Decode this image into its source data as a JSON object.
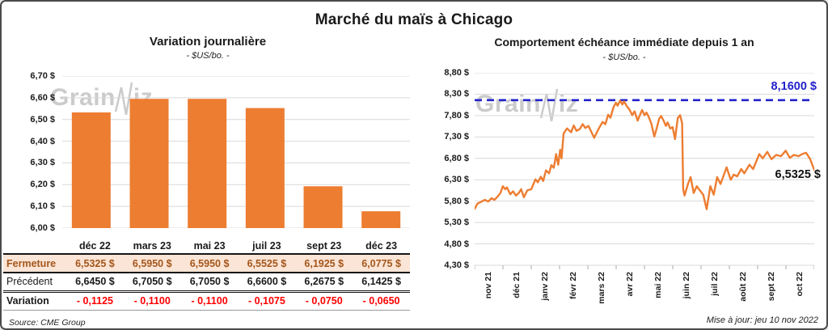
{
  "page": {
    "title": "Marché du maïs à Chicago",
    "source": "Source: CME Group",
    "updated": "Mise à jour: jeu 10 nov 2022",
    "watermark": {
      "prefix": "Grain",
      "suffix": "iz"
    }
  },
  "chart_data": [
    {
      "type": "bar",
      "title": "Variation journalière",
      "subtitle": "- $US/bo. -",
      "categories": [
        "déc 22",
        "mars 23",
        "mai 23",
        "juil 23",
        "sept 23",
        "déc 23"
      ],
      "values": [
        6.5325,
        6.595,
        6.595,
        6.5525,
        6.1925,
        6.0775
      ],
      "ylim": [
        6.0,
        6.7
      ],
      "ytick_step": 0.1,
      "ytick_labels": [
        "6,70 $",
        "6,60 $",
        "6,50 $",
        "6,40 $",
        "6,30 $",
        "6,20 $",
        "6,10 $",
        "6,00 $"
      ],
      "bar_color": "#ED7D31",
      "grid_color": "#D9D9D9"
    },
    {
      "type": "line",
      "title": "Comportement échéance immédiate depuis 1 an",
      "subtitle": "- $US/bo. -",
      "x_labels": [
        "nov 21",
        "déc 21",
        "janv 22",
        "févr 22",
        "mars 22",
        "avr 22",
        "mai 22",
        "juin 22",
        "juil 22",
        "août 22",
        "sept 22",
        "oct 22"
      ],
      "ylim": [
        4.3,
        8.8
      ],
      "ytick_step": 0.5,
      "ytick_labels": [
        "8,80 $",
        "8,30 $",
        "7,80 $",
        "7,30 $",
        "6,80 $",
        "6,30 $",
        "5,80 $",
        "5,30 $",
        "4,80 $",
        "4,30 $"
      ],
      "line_color": "#ED7D31",
      "grid_color": "#D9D9D9",
      "reference_line": {
        "value": 8.16,
        "label": "8,1600 $",
        "color": "#2222CC"
      },
      "last_point_label": "6,5325 $",
      "points": [
        [
          0.0,
          5.62
        ],
        [
          0.008,
          5.74
        ],
        [
          0.018,
          5.78
        ],
        [
          0.03,
          5.83
        ],
        [
          0.04,
          5.79
        ],
        [
          0.05,
          5.87
        ],
        [
          0.058,
          5.83
        ],
        [
          0.068,
          5.91
        ],
        [
          0.076,
          5.99
        ],
        [
          0.083,
          6.15
        ],
        [
          0.09,
          6.08
        ],
        [
          0.095,
          6.12
        ],
        [
          0.105,
          5.96
        ],
        [
          0.113,
          6.03
        ],
        [
          0.122,
          5.93
        ],
        [
          0.13,
          5.99
        ],
        [
          0.137,
          6.08
        ],
        [
          0.145,
          5.89
        ],
        [
          0.155,
          6.05
        ],
        [
          0.167,
          6.08
        ],
        [
          0.179,
          6.31
        ],
        [
          0.186,
          6.24
        ],
        [
          0.195,
          6.37
        ],
        [
          0.202,
          6.27
        ],
        [
          0.21,
          6.52
        ],
        [
          0.219,
          6.45
        ],
        [
          0.226,
          6.64
        ],
        [
          0.233,
          6.58
        ],
        [
          0.24,
          6.9
        ],
        [
          0.246,
          6.65
        ],
        [
          0.252,
          7.0
        ],
        [
          0.256,
          6.8
        ],
        [
          0.262,
          7.38
        ],
        [
          0.272,
          7.5
        ],
        [
          0.284,
          7.41
        ],
        [
          0.292,
          7.57
        ],
        [
          0.3,
          7.44
        ],
        [
          0.31,
          7.49
        ],
        [
          0.318,
          7.6
        ],
        [
          0.326,
          7.51
        ],
        [
          0.335,
          7.56
        ],
        [
          0.344,
          7.41
        ],
        [
          0.352,
          7.28
        ],
        [
          0.362,
          7.44
        ],
        [
          0.37,
          7.56
        ],
        [
          0.377,
          7.65
        ],
        [
          0.385,
          7.6
        ],
        [
          0.393,
          7.82
        ],
        [
          0.4,
          7.75
        ],
        [
          0.409,
          8.0
        ],
        [
          0.416,
          8.1
        ],
        [
          0.421,
          8.03
        ],
        [
          0.428,
          8.15
        ],
        [
          0.435,
          8.06
        ],
        [
          0.44,
          8.13
        ],
        [
          0.448,
          8.02
        ],
        [
          0.456,
          7.94
        ],
        [
          0.464,
          7.81
        ],
        [
          0.471,
          7.9
        ],
        [
          0.48,
          7.68
        ],
        [
          0.488,
          7.84
        ],
        [
          0.493,
          7.93
        ],
        [
          0.5,
          7.81
        ],
        [
          0.506,
          7.87
        ],
        [
          0.512,
          7.78
        ],
        [
          0.52,
          7.62
        ],
        [
          0.529,
          7.31
        ],
        [
          0.536,
          7.5
        ],
        [
          0.543,
          7.72
        ],
        [
          0.549,
          7.79
        ],
        [
          0.556,
          7.69
        ],
        [
          0.563,
          7.56
        ],
        [
          0.568,
          7.64
        ],
        [
          0.576,
          7.5
        ],
        [
          0.583,
          7.53
        ],
        [
          0.59,
          7.25
        ],
        [
          0.598,
          7.74
        ],
        [
          0.605,
          7.81
        ],
        [
          0.611,
          7.62
        ],
        [
          0.614,
          6.08
        ],
        [
          0.618,
          5.93
        ],
        [
          0.628,
          6.2
        ],
        [
          0.636,
          6.36
        ],
        [
          0.645,
          5.99
        ],
        [
          0.654,
          6.15
        ],
        [
          0.663,
          6.05
        ],
        [
          0.673,
          5.95
        ],
        [
          0.683,
          5.61
        ],
        [
          0.694,
          6.15
        ],
        [
          0.704,
          5.95
        ],
        [
          0.714,
          6.36
        ],
        [
          0.724,
          6.2
        ],
        [
          0.742,
          6.59
        ],
        [
          0.754,
          6.3
        ],
        [
          0.763,
          6.42
        ],
        [
          0.773,
          6.38
        ],
        [
          0.785,
          6.55
        ],
        [
          0.794,
          6.45
        ],
        [
          0.809,
          6.65
        ],
        [
          0.82,
          6.55
        ],
        [
          0.838,
          6.9
        ],
        [
          0.848,
          6.8
        ],
        [
          0.862,
          6.95
        ],
        [
          0.874,
          6.78
        ],
        [
          0.888,
          6.88
        ],
        [
          0.902,
          6.85
        ],
        [
          0.916,
          6.98
        ],
        [
          0.928,
          6.81
        ],
        [
          0.94,
          6.88
        ],
        [
          0.954,
          6.85
        ],
        [
          0.964,
          6.9
        ],
        [
          0.976,
          6.93
        ],
        [
          0.988,
          6.78
        ],
        [
          1.0,
          6.53
        ]
      ]
    }
  ],
  "table": {
    "rows": [
      {
        "label": "Fermeture",
        "values": [
          "6,5325 $",
          "6,5950 $",
          "6,5950 $",
          "6,5525 $",
          "6,1925 $",
          "6,0775 $"
        ]
      },
      {
        "label": "Précédent",
        "values": [
          "6,6450 $",
          "6,7050 $",
          "6,7050 $",
          "6,6600 $",
          "6,2675 $",
          "6,1425 $"
        ]
      },
      {
        "label": "Variation",
        "values": [
          "- 0,1125",
          "- 0,1100",
          "- 0,1100",
          "- 0,1075",
          "- 0,0750",
          "- 0,0650"
        ]
      }
    ]
  }
}
